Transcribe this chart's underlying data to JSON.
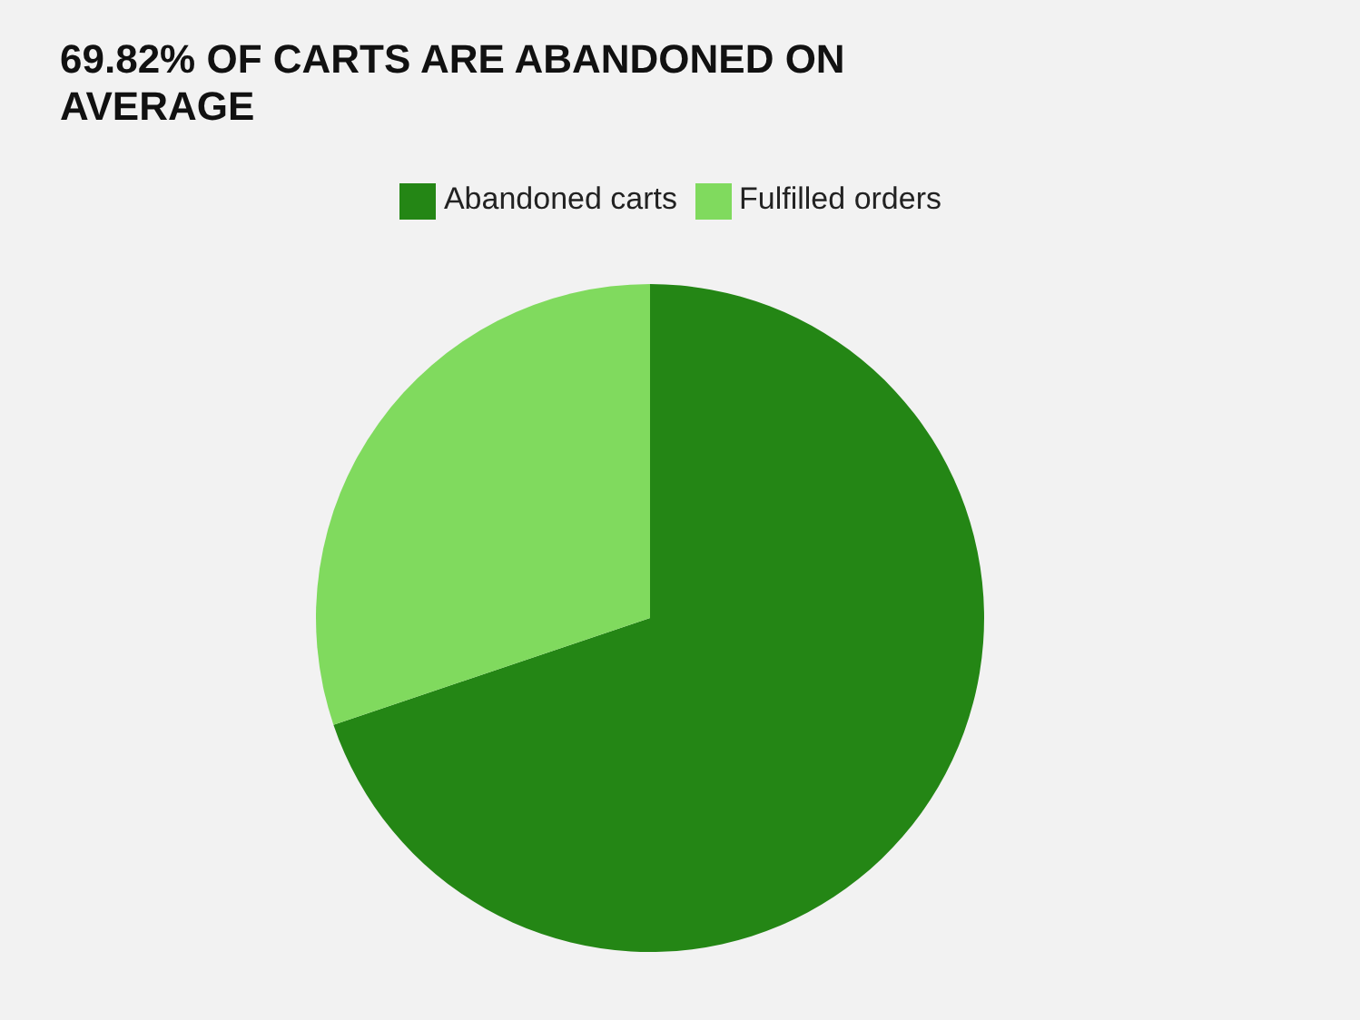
{
  "chart_data": {
    "type": "pie",
    "title": "69.82% OF CARTS ARE ABANDONED ON AVERAGE",
    "categories": [
      "Abandoned carts",
      "Fulfilled orders"
    ],
    "values": [
      69.82,
      30.18
    ],
    "colors": [
      "#248615",
      "#80da5e"
    ],
    "legend": "top"
  }
}
